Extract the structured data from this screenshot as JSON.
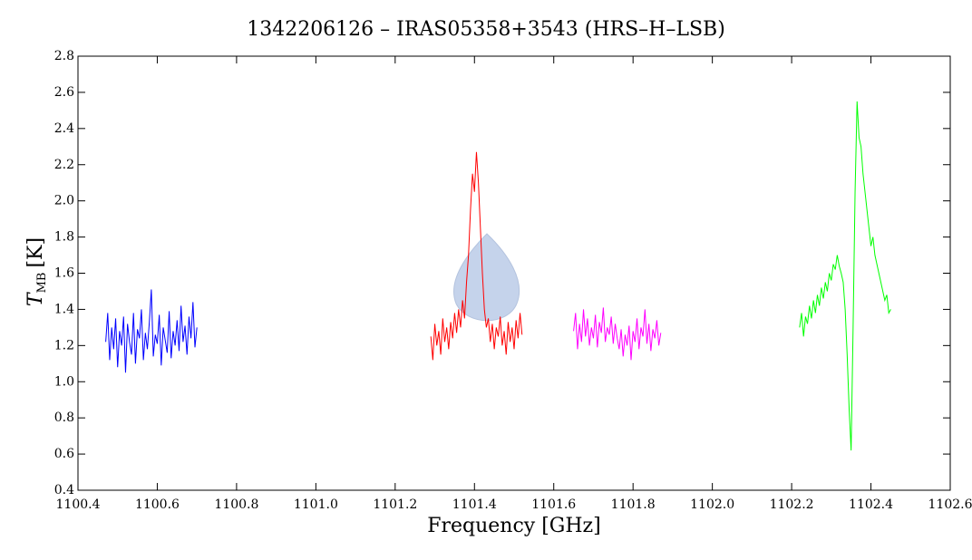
{
  "chart_data": {
    "type": "line",
    "title": "1342206126 – IRAS05358+3543 (HRS–H–LSB)",
    "xlabel": "Frequency [GHz]",
    "ylabel": {
      "symbol": "T",
      "subscript": "MB",
      "unit": "[K]"
    },
    "xlim": [
      1100.4,
      1102.6
    ],
    "xticks": [
      1100.4,
      1100.6,
      1100.8,
      {
        "value": 1101,
        "label": "1101.0"
      },
      1101.2,
      1101.4,
      1101.6,
      1101.8,
      {
        "value": 1102,
        "label": "1102.0"
      },
      1102.2,
      1102.4,
      1102.6
    ],
    "ylim": [
      0.4,
      2.8
    ],
    "yticks": [
      0.4,
      0.6,
      0.8,
      {
        "value": 1,
        "label": "1.0"
      },
      1.2,
      1.4,
      1.6,
      1.8,
      {
        "value": 2,
        "label": "2.0"
      },
      2.2,
      2.4,
      2.6,
      2.8
    ],
    "series": [
      {
        "color": "#0000ff",
        "x": [
          1100.47,
          1100.475,
          1100.48,
          1100.485,
          1100.49,
          1100.495,
          1100.5,
          1100.505,
          1100.51,
          1100.515,
          1100.52,
          1100.525,
          1100.53,
          1100.535,
          1100.54,
          1100.545,
          1100.55,
          1100.555,
          1100.56,
          1100.565,
          1100.57,
          1100.575,
          1100.58,
          1100.585,
          1100.59,
          1100.595,
          1100.6,
          1100.605,
          1100.61,
          1100.615,
          1100.62,
          1100.625,
          1100.63,
          1100.635,
          1100.64,
          1100.645,
          1100.65,
          1100.655,
          1100.66,
          1100.665,
          1100.67,
          1100.675,
          1100.68,
          1100.685,
          1100.69,
          1100.695,
          1100.7
        ],
        "values": [
          1.22,
          1.38,
          1.12,
          1.3,
          1.18,
          1.35,
          1.08,
          1.28,
          1.2,
          1.36,
          1.05,
          1.32,
          1.22,
          1.15,
          1.38,
          1.1,
          1.29,
          1.24,
          1.4,
          1.12,
          1.27,
          1.18,
          1.33,
          1.51,
          1.14,
          1.26,
          1.21,
          1.37,
          1.09,
          1.3,
          1.23,
          1.16,
          1.39,
          1.13,
          1.28,
          1.2,
          1.34,
          1.17,
          1.42,
          1.22,
          1.31,
          1.15,
          1.36,
          1.24,
          1.44,
          1.19,
          1.3
        ]
      },
      {
        "color": "#ff0000",
        "x": [
          1101.29,
          1101.295,
          1101.3,
          1101.305,
          1101.31,
          1101.315,
          1101.32,
          1101.325,
          1101.33,
          1101.335,
          1101.34,
          1101.345,
          1101.35,
          1101.355,
          1101.36,
          1101.365,
          1101.37,
          1101.375,
          1101.38,
          1101.385,
          1101.39,
          1101.395,
          1101.4,
          1101.405,
          1101.41,
          1101.415,
          1101.42,
          1101.425,
          1101.43,
          1101.435,
          1101.44,
          1101.445,
          1101.45,
          1101.455,
          1101.46,
          1101.465,
          1101.47,
          1101.475,
          1101.48,
          1101.485,
          1101.49,
          1101.495,
          1101.5,
          1101.505,
          1101.51,
          1101.515,
          1101.52
        ],
        "values": [
          1.25,
          1.12,
          1.32,
          1.2,
          1.28,
          1.15,
          1.35,
          1.22,
          1.3,
          1.18,
          1.33,
          1.24,
          1.38,
          1.27,
          1.4,
          1.3,
          1.45,
          1.35,
          1.55,
          1.7,
          1.95,
          2.15,
          2.05,
          2.27,
          2.1,
          1.85,
          1.6,
          1.4,
          1.3,
          1.35,
          1.22,
          1.32,
          1.18,
          1.3,
          1.25,
          1.36,
          1.2,
          1.28,
          1.15,
          1.33,
          1.22,
          1.3,
          1.18,
          1.34,
          1.24,
          1.38,
          1.26
        ]
      },
      {
        "color": "#ff00ff",
        "x": [
          1101.65,
          1101.655,
          1101.66,
          1101.665,
          1101.67,
          1101.675,
          1101.68,
          1101.685,
          1101.69,
          1101.695,
          1101.7,
          1101.705,
          1101.71,
          1101.715,
          1101.72,
          1101.725,
          1101.73,
          1101.735,
          1101.74,
          1101.745,
          1101.75,
          1101.755,
          1101.76,
          1101.765,
          1101.77,
          1101.775,
          1101.78,
          1101.785,
          1101.79,
          1101.795,
          1101.8,
          1101.805,
          1101.81,
          1101.815,
          1101.82,
          1101.825,
          1101.83,
          1101.835,
          1101.84,
          1101.845,
          1101.85,
          1101.855,
          1101.86,
          1101.865,
          1101.87
        ],
        "values": [
          1.28,
          1.38,
          1.18,
          1.32,
          1.22,
          1.4,
          1.25,
          1.35,
          1.2,
          1.3,
          1.24,
          1.37,
          1.19,
          1.33,
          1.27,
          1.41,
          1.22,
          1.3,
          1.26,
          1.36,
          1.21,
          1.32,
          1.24,
          1.18,
          1.29,
          1.14,
          1.26,
          1.2,
          1.31,
          1.12,
          1.28,
          1.22,
          1.35,
          1.18,
          1.3,
          1.25,
          1.4,
          1.21,
          1.32,
          1.17,
          1.29,
          1.24,
          1.34,
          1.2,
          1.27
        ]
      },
      {
        "color": "#00ff00",
        "x": [
          1102.22,
          1102.225,
          1102.23,
          1102.235,
          1102.24,
          1102.245,
          1102.25,
          1102.255,
          1102.26,
          1102.265,
          1102.27,
          1102.275,
          1102.28,
          1102.285,
          1102.29,
          1102.295,
          1102.3,
          1102.305,
          1102.31,
          1102.315,
          1102.32,
          1102.325,
          1102.33,
          1102.335,
          1102.34,
          1102.345,
          1102.35,
          1102.355,
          1102.36,
          1102.365,
          1102.37,
          1102.375,
          1102.38,
          1102.385,
          1102.39,
          1102.395,
          1102.4,
          1102.405,
          1102.41,
          1102.415,
          1102.42,
          1102.425,
          1102.43,
          1102.435,
          1102.44,
          1102.445,
          1102.45
        ],
        "values": [
          1.3,
          1.38,
          1.25,
          1.36,
          1.32,
          1.42,
          1.35,
          1.45,
          1.38,
          1.48,
          1.42,
          1.52,
          1.46,
          1.55,
          1.5,
          1.6,
          1.56,
          1.65,
          1.62,
          1.7,
          1.64,
          1.6,
          1.55,
          1.4,
          1.15,
          0.85,
          0.62,
          1.3,
          2.05,
          2.55,
          2.35,
          2.3,
          2.15,
          2.05,
          1.95,
          1.85,
          1.75,
          1.8,
          1.7,
          1.65,
          1.6,
          1.55,
          1.5,
          1.45,
          1.48,
          1.38,
          1.4
        ]
      }
    ]
  }
}
